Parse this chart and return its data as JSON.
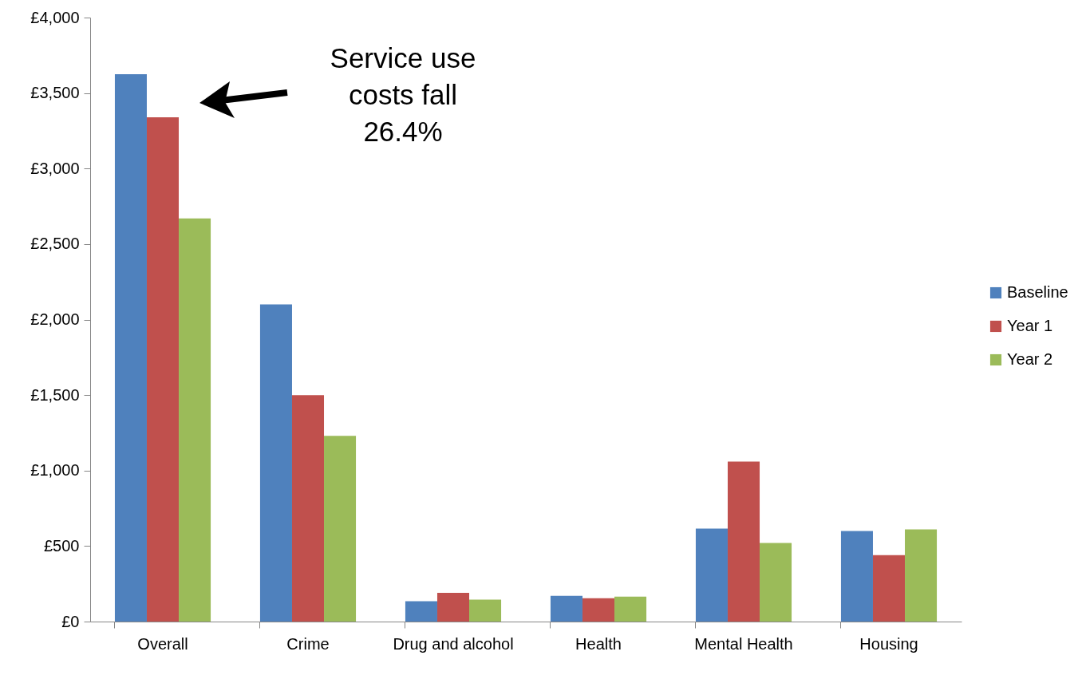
{
  "chart_data": {
    "type": "bar",
    "categories": [
      "Overall",
      "Crime",
      "Drug and alcohol",
      "Health",
      "Mental Health",
      "Housing"
    ],
    "series": [
      {
        "name": "Baseline",
        "color": "#4f81bd",
        "values": [
          3625,
          2100,
          135,
          170,
          615,
          600
        ]
      },
      {
        "name": "Year 1",
        "color": "#c0504d",
        "values": [
          3340,
          1500,
          190,
          155,
          1060,
          440
        ]
      },
      {
        "name": "Year 2",
        "color": "#9bbb59",
        "values": [
          2670,
          1230,
          145,
          165,
          520,
          610
        ]
      }
    ],
    "ylim": [
      0,
      4000
    ],
    "yticks": [
      {
        "value": 0,
        "label": "£0"
      },
      {
        "value": 500,
        "label": "£500"
      },
      {
        "value": 1000,
        "label": "£1,000"
      },
      {
        "value": 1500,
        "label": "£1,500"
      },
      {
        "value": 2000,
        "label": "£2,000"
      },
      {
        "value": 2500,
        "label": "£2,500"
      },
      {
        "value": 3000,
        "label": "£3,000"
      },
      {
        "value": 3500,
        "label": "£3,500"
      },
      {
        "value": 4000,
        "label": "£4,000"
      }
    ],
    "grid": false,
    "legend": "right",
    "annotations": [
      "Service use costs fall 26.4%"
    ]
  }
}
